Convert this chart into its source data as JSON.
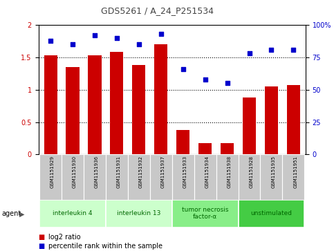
{
  "title": "GDS5261 / A_24_P251534",
  "samples": [
    "GSM1151929",
    "GSM1151930",
    "GSM1151936",
    "GSM1151931",
    "GSM1151932",
    "GSM1151937",
    "GSM1151933",
    "GSM1151934",
    "GSM1151938",
    "GSM1151928",
    "GSM1151935",
    "GSM1151951"
  ],
  "log2_ratio": [
    1.53,
    1.35,
    1.53,
    1.59,
    1.38,
    1.7,
    0.38,
    0.17,
    0.17,
    0.88,
    1.05,
    1.07
  ],
  "percentile": [
    88,
    85,
    92,
    90,
    85,
    93,
    66,
    58,
    55,
    78,
    81,
    81
  ],
  "ylim_left": [
    0,
    2
  ],
  "ylim_right": [
    0,
    100
  ],
  "yticks_left": [
    0,
    0.5,
    1.0,
    1.5,
    2.0
  ],
  "ytick_labels_left": [
    "0",
    "0.5",
    "1",
    "1.5",
    "2"
  ],
  "yticks_right": [
    0,
    25,
    50,
    75,
    100
  ],
  "ytick_labels_right": [
    "0",
    "25",
    "50",
    "75",
    "100%"
  ],
  "bar_color": "#cc0000",
  "dot_color": "#0000cc",
  "groups": [
    {
      "label": "interleukin 4",
      "start": 0,
      "end": 3,
      "color": "#ccffcc"
    },
    {
      "label": "interleukin 13",
      "start": 3,
      "end": 6,
      "color": "#ccffcc"
    },
    {
      "label": "tumor necrosis\nfactor-α",
      "start": 6,
      "end": 9,
      "color": "#88ee88"
    },
    {
      "label": "unstimulated",
      "start": 9,
      "end": 12,
      "color": "#44cc44"
    }
  ],
  "legend_red_label": "log2 ratio",
  "legend_blue_label": "percentile rank within the sample",
  "agent_label": "agent",
  "left_axis_color": "#cc0000",
  "right_axis_color": "#0000cc",
  "background_xtick": "#c8c8c8",
  "title_color": "#444444"
}
